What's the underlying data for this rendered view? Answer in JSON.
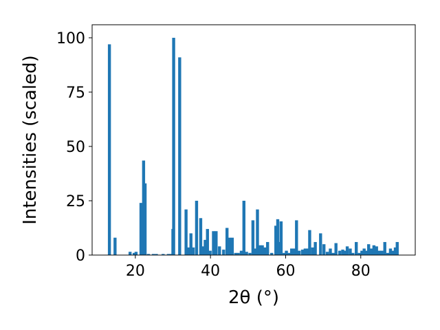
{
  "chart_data": {
    "type": "bar",
    "title": "",
    "xlabel": "2θ (°)",
    "ylabel": "Intensities (scaled)",
    "xlim": [
      8.5,
      94.5
    ],
    "ylim": [
      0,
      106
    ],
    "x_ticks": [
      20,
      40,
      60,
      80
    ],
    "x_tick_labels": [
      "20",
      "40",
      "60",
      "80"
    ],
    "y_ticks": [
      0,
      25,
      50,
      75,
      100
    ],
    "y_tick_labels": [
      "0",
      "25",
      "50",
      "75",
      "100"
    ],
    "grid": false,
    "bar_color": "#1f77b4",
    "x": [
      13.1,
      14.6,
      18.6,
      19.7,
      20.2,
      21.5,
      22.2,
      22.6,
      23.5,
      24.8,
      25.6,
      27.4,
      28.8,
      29.5,
      30.0,
      30.2,
      31.8,
      33.5,
      34.2,
      34.8,
      35.4,
      36.3,
      37.4,
      38.0,
      38.6,
      39.2,
      39.9,
      40.8,
      41.5,
      42.4,
      43.5,
      44.4,
      45.1,
      45.8,
      46.7,
      47.4,
      48.2,
      48.9,
      49.6,
      50.5,
      51.3,
      51.8,
      52.5,
      53.2,
      53.8,
      54.4,
      55.2,
      56.3,
      57.4,
      57.9,
      58.4,
      58.8,
      59.6,
      60.2,
      60.9,
      61.6,
      62.3,
      62.9,
      63.6,
      64.5,
      65.2,
      65.9,
      66.4,
      67.2,
      67.9,
      69.3,
      70.2,
      71.1,
      71.9,
      72.6,
      73.4,
      74.4,
      75.2,
      75.8,
      76.4,
      77.2,
      77.9,
      78.8,
      79.6,
      80.3,
      80.9,
      81.4,
      82.1,
      82.8,
      83.5,
      84.2,
      84.9,
      85.6,
      86.4,
      87.2,
      87.9,
      88.6,
      89.2,
      89.7
    ],
    "values": [
      97,
      8,
      1.5,
      1,
      1.5,
      24,
      43.5,
      33,
      0.5,
      0.5,
      0.5,
      0.5,
      0.5,
      0.5,
      12,
      100,
      91,
      21,
      3.5,
      10,
      3.5,
      25,
      17,
      4,
      7,
      12,
      2,
      11,
      11,
      4,
      2.5,
      12.5,
      8,
      8,
      1,
      1,
      2,
      25,
      1.5,
      1,
      16,
      3,
      21,
      4.5,
      4.5,
      3.5,
      6,
      1,
      13.5,
      16.5,
      6,
      15.5,
      1,
      2,
      1,
      3,
      3,
      16,
      2,
      2.5,
      3,
      3,
      11.5,
      3.5,
      6,
      10,
      5,
      1.5,
      3,
      1,
      5.5,
      2,
      2.5,
      2,
      4,
      3,
      1,
      6,
      1,
      2,
      3,
      2,
      5,
      3,
      4.5,
      4,
      2,
      2,
      6,
      1,
      3,
      2,
      3.5,
      6
    ]
  }
}
